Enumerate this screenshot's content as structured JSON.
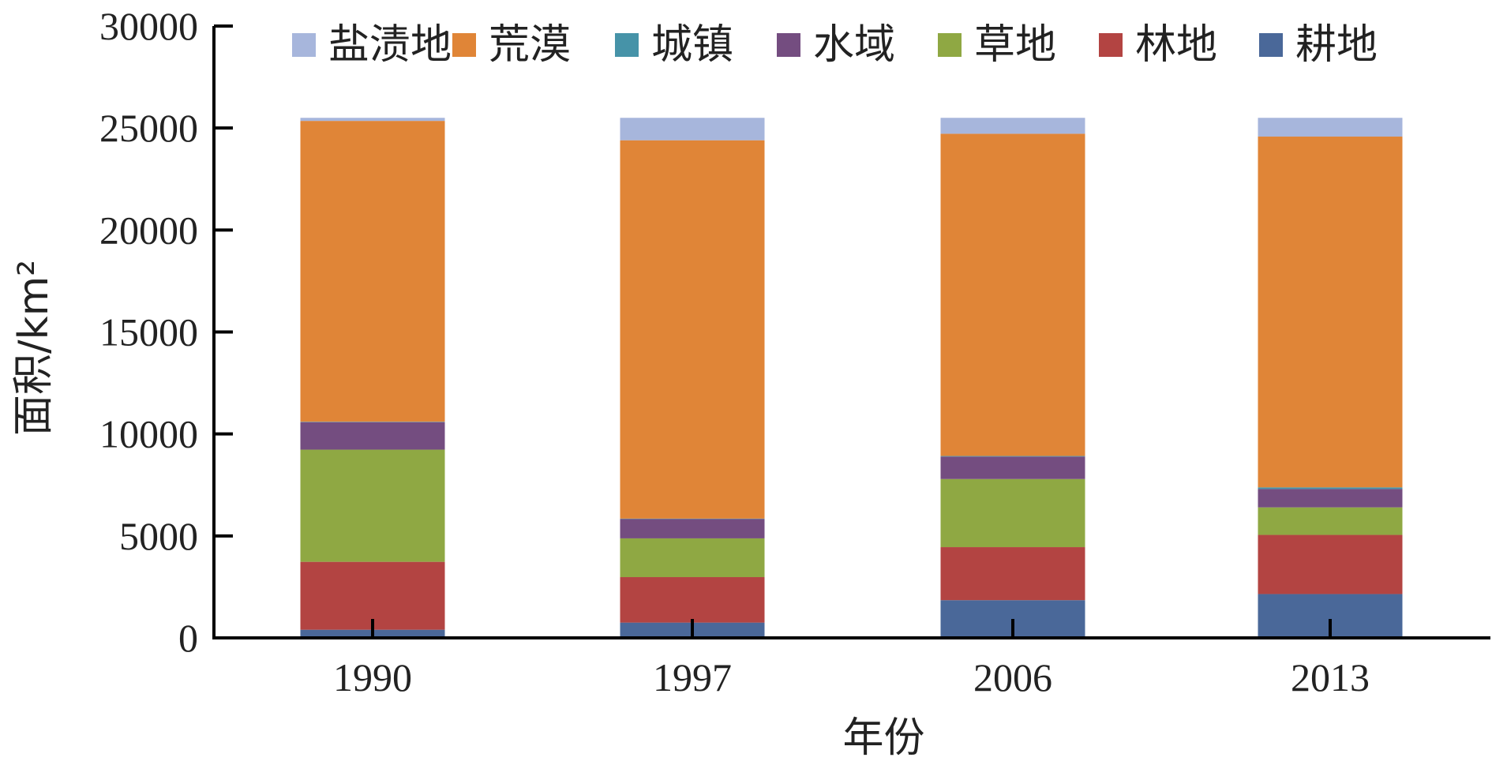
{
  "chart_data": {
    "type": "bar",
    "stacked": true,
    "categories": [
      "1990",
      "1997",
      "2006",
      "2013"
    ],
    "xlabel": "年份",
    "ylabel": "面积/km²",
    "ylim": [
      0,
      30000
    ],
    "yticks": [
      "0",
      "5000",
      "10000",
      "15000",
      "20000",
      "25000",
      "30000"
    ],
    "grid": false,
    "legend_position": "top",
    "series": [
      {
        "name": "耕地",
        "color": "#4a6899",
        "values": [
          400,
          750,
          1850,
          2150
        ]
      },
      {
        "name": "林地",
        "color": "#b34442",
        "values": [
          3330,
          2230,
          2600,
          2900
        ]
      },
      {
        "name": "草地",
        "color": "#8fa843",
        "values": [
          5500,
          1900,
          3340,
          1350
        ]
      },
      {
        "name": "水域",
        "color": "#744d80",
        "values": [
          1350,
          950,
          1100,
          900
        ]
      },
      {
        "name": "城镇",
        "color": "#4693a8",
        "values": [
          20,
          20,
          30,
          80
        ]
      },
      {
        "name": "荒漠",
        "color": "#e08537",
        "values": [
          14750,
          18550,
          15800,
          17200
        ]
      },
      {
        "name": "盐渍地",
        "color": "#a7b6dc",
        "values": [
          150,
          1100,
          780,
          920
        ]
      }
    ],
    "legend_order": [
      "盐渍地",
      "荒漠",
      "城镇",
      "水域",
      "草地",
      "林地",
      "耕地"
    ]
  }
}
